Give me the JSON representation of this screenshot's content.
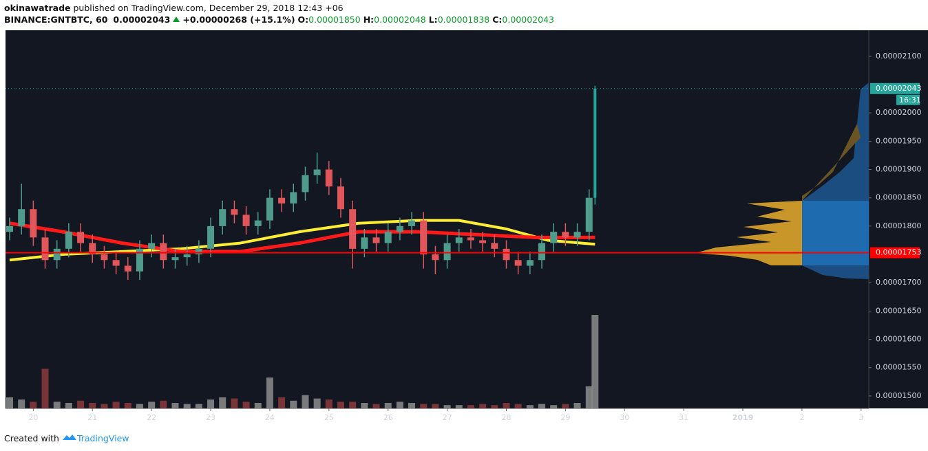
{
  "header": {
    "author": "okinawatrade",
    "published": "published on TradingView.com, December 29, 2018 12:43 +06",
    "symbol": "BINANCE:GNTBTC, 60",
    "last": "0.00002043",
    "change": "+0.00000268 (+15.1%)",
    "ohlc": [
      {
        "label": "O:",
        "value": "0.00001850"
      },
      {
        "label": "H:",
        "value": "0.00002048"
      },
      {
        "label": "L:",
        "value": "0.00001838"
      },
      {
        "label": "C:",
        "value": "0.00002043"
      }
    ]
  },
  "footer": {
    "created": "Created with",
    "brand": "TradingView"
  },
  "chart_data": {
    "type": "candlestick",
    "up_color": "#4f9c8c",
    "down_color": "#e0565b",
    "last_color": "#26a69a",
    "x": [
      19.6,
      19.8,
      20,
      20.2,
      20.4,
      20.6,
      20.8,
      21,
      21.2,
      21.4,
      21.6,
      21.8,
      22,
      22.2,
      22.4,
      22.6,
      22.8,
      23,
      23.2,
      23.4,
      23.6,
      23.8,
      24,
      24.2,
      24.4,
      24.6,
      24.8,
      25,
      25.2,
      25.4,
      25.6,
      25.8,
      26,
      26.2,
      26.4,
      26.6,
      26.8,
      27,
      27.2,
      27.4,
      27.6,
      27.8,
      28,
      28.2,
      28.4,
      28.6,
      28.8,
      29,
      29.2,
      29.4,
      29.5
    ],
    "open": [
      1.79e-05,
      1.8e-05,
      1.83e-05,
      1.78e-05,
      1.74e-05,
      1.76e-05,
      1.79e-05,
      1.77e-05,
      1.75e-05,
      1.74e-05,
      1.73e-05,
      1.72e-05,
      1.76e-05,
      1.77e-05,
      1.74e-05,
      1.745e-05,
      1.75e-05,
      1.76e-05,
      1.8e-05,
      1.83e-05,
      1.82e-05,
      1.8e-05,
      1.81e-05,
      1.85e-05,
      1.84e-05,
      1.86e-05,
      1.89e-05,
      1.9e-05,
      1.87e-05,
      1.83e-05,
      1.76e-05,
      1.78e-05,
      1.77e-05,
      1.79e-05,
      1.8e-05,
      1.81e-05,
      1.75e-05,
      1.74e-05,
      1.77e-05,
      1.78e-05,
      1.775e-05,
      1.77e-05,
      1.76e-05,
      1.74e-05,
      1.73e-05,
      1.74e-05,
      1.77e-05,
      1.79e-05,
      1.78e-05,
      1.79e-05,
      1.85e-05
    ],
    "high": [
      1.815e-05,
      1.875e-05,
      1.845e-05,
      1.795e-05,
      1.775e-05,
      1.805e-05,
      1.805e-05,
      1.785e-05,
      1.765e-05,
      1.755e-05,
      1.745e-05,
      1.775e-05,
      1.785e-05,
      1.785e-05,
      1.76e-05,
      1.765e-05,
      1.775e-05,
      1.815e-05,
      1.845e-05,
      1.845e-05,
      1.835e-05,
      1.825e-05,
      1.865e-05,
      1.865e-05,
      1.875e-05,
      1.905e-05,
      1.93e-05,
      1.915e-05,
      1.885e-05,
      1.845e-05,
      1.795e-05,
      1.795e-05,
      1.805e-05,
      1.815e-05,
      1.825e-05,
      1.825e-05,
      1.765e-05,
      1.785e-05,
      1.795e-05,
      1.795e-05,
      1.79e-05,
      1.785e-05,
      1.775e-05,
      1.755e-05,
      1.755e-05,
      1.785e-05,
      1.805e-05,
      1.805e-05,
      1.805e-05,
      1.865e-05,
      2.048e-05
    ],
    "low": [
      1.775e-05,
      1.785e-05,
      1.765e-05,
      1.725e-05,
      1.725e-05,
      1.745e-05,
      1.755e-05,
      1.735e-05,
      1.725e-05,
      1.715e-05,
      1.705e-05,
      1.705e-05,
      1.745e-05,
      1.725e-05,
      1.725e-05,
      1.73e-05,
      1.735e-05,
      1.745e-05,
      1.785e-05,
      1.805e-05,
      1.785e-05,
      1.785e-05,
      1.795e-05,
      1.825e-05,
      1.825e-05,
      1.845e-05,
      1.875e-05,
      1.855e-05,
      1.815e-05,
      1.725e-05,
      1.745e-05,
      1.755e-05,
      1.755e-05,
      1.775e-05,
      1.785e-05,
      1.725e-05,
      1.715e-05,
      1.725e-05,
      1.755e-05,
      1.76e-05,
      1.755e-05,
      1.745e-05,
      1.725e-05,
      1.715e-05,
      1.715e-05,
      1.725e-05,
      1.755e-05,
      1.765e-05,
      1.765e-05,
      1.775e-05,
      1.838e-05
    ],
    "close": [
      1.8e-05,
      1.83e-05,
      1.78e-05,
      1.74e-05,
      1.76e-05,
      1.79e-05,
      1.77e-05,
      1.75e-05,
      1.74e-05,
      1.73e-05,
      1.72e-05,
      1.76e-05,
      1.77e-05,
      1.74e-05,
      1.745e-05,
      1.75e-05,
      1.76e-05,
      1.8e-05,
      1.83e-05,
      1.82e-05,
      1.8e-05,
      1.81e-05,
      1.85e-05,
      1.84e-05,
      1.86e-05,
      1.89e-05,
      1.9e-05,
      1.87e-05,
      1.83e-05,
      1.76e-05,
      1.78e-05,
      1.77e-05,
      1.79e-05,
      1.8e-05,
      1.81e-05,
      1.75e-05,
      1.74e-05,
      1.77e-05,
      1.78e-05,
      1.775e-05,
      1.77e-05,
      1.76e-05,
      1.74e-05,
      1.73e-05,
      1.74e-05,
      1.77e-05,
      1.79e-05,
      1.78e-05,
      1.79e-05,
      1.85e-05,
      2.043e-05
    ],
    "volume": {
      "values": [
        10,
        8,
        6,
        36,
        6,
        5,
        7,
        5,
        4,
        6,
        5,
        4,
        6,
        7,
        5,
        4,
        4,
        8,
        10,
        9,
        6,
        5,
        28,
        10,
        7,
        12,
        9,
        8,
        6,
        6,
        5,
        4,
        5,
        6,
        5,
        4,
        4,
        3,
        3,
        3,
        4,
        3,
        5,
        4,
        3,
        4,
        3,
        4,
        5,
        20,
        85
      ],
      "ylim": [
        0,
        100
      ],
      "up_color": "#8c8c8c",
      "down_color": "#8b3a3a"
    },
    "overlays": [
      {
        "color": "#ffee33",
        "width": 4,
        "x": [
          19.6,
          20.5,
          21.5,
          22.5,
          23.5,
          24.5,
          25.5,
          26.5,
          27.2,
          28,
          28.7,
          29.5
        ],
        "values": [
          1.74e-05,
          1.75e-05,
          1.755e-05,
          1.76e-05,
          1.77e-05,
          1.79e-05,
          1.805e-05,
          1.81e-05,
          1.81e-05,
          1.795e-05,
          1.775e-05,
          1.768e-05
        ]
      },
      {
        "color": "#ff1a1a",
        "width": 5,
        "x": [
          19.6,
          20.5,
          21.5,
          22.5,
          23.5,
          24.5,
          25.5,
          26.5,
          27.5,
          28.5,
          29.5
        ],
        "values": [
          1.805e-05,
          1.79e-05,
          1.77e-05,
          1.755e-05,
          1.755e-05,
          1.77e-05,
          1.79e-05,
          1.79e-05,
          1.785e-05,
          1.78e-05,
          1.78e-05
        ]
      }
    ],
    "price_lines": [
      {
        "value": 2.043e-05,
        "label": "0.00002043",
        "sublabel": "16:31",
        "color": "#26a69a"
      },
      {
        "value": 1.753e-05,
        "label": "0.00001753",
        "color": "#ff0000"
      }
    ],
    "xlim": [
      19.53,
      34.13
    ],
    "xticks": [
      20,
      21,
      22,
      23,
      24,
      25,
      26,
      27,
      28,
      29,
      30,
      31,
      {
        "value": 32,
        "label": "2019"
      },
      {
        "value": 33,
        "label": "2"
      },
      {
        "value": 34,
        "label": "3"
      }
    ],
    "ylim": [
      1.478e-05,
      2.146e-05
    ],
    "yticks": [
      {
        "value": 1.5e-05,
        "label": "0.00001500"
      },
      {
        "value": 1.55e-05,
        "label": "0.00001550"
      },
      {
        "value": 1.6e-05,
        "label": "0.00001600"
      },
      {
        "value": 1.65e-05,
        "label": "0.00001650"
      },
      {
        "value": 1.7e-05,
        "label": "0.00001700"
      },
      {
        "value": 1.8e-05,
        "label": "0.00001800"
      },
      {
        "value": 1.85e-05,
        "label": "0.00001850"
      },
      {
        "value": 1.9e-05,
        "label": "0.00001900"
      },
      {
        "value": 1.95e-05,
        "label": "0.00001950"
      },
      {
        "value": 2e-05,
        "label": "0.00002000"
      },
      {
        "value": 2.1e-05,
        "label": "0.00002100"
      }
    ]
  }
}
